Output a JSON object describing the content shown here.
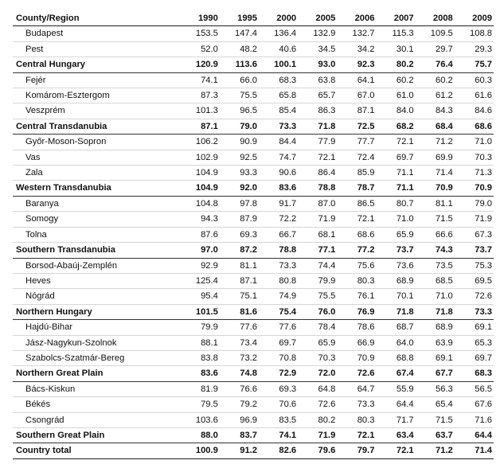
{
  "table": {
    "header": [
      "County/Region",
      "1990",
      "1995",
      "2000",
      "2005",
      "2006",
      "2007",
      "2008",
      "2009"
    ],
    "rows": [
      {
        "name": "Budapest",
        "type": "county",
        "values": [
          "153.5",
          "147.4",
          "136.4",
          "132.9",
          "132.7",
          "115.3",
          "109.5",
          "108.8"
        ],
        "bold": []
      },
      {
        "name": "Pest",
        "type": "county",
        "values": [
          "52.0",
          "48.2",
          "40.6",
          "34.5",
          "34.2",
          "30.1",
          "29.7",
          "29.3"
        ],
        "bold": []
      },
      {
        "name": "Central Hungary",
        "type": "region",
        "values": [
          "120.9",
          "113.6",
          "100.1",
          "93.0",
          "92.3",
          "80.2",
          "76.4",
          "75.7"
        ],
        "bold": [
          0,
          3,
          4,
          5,
          6,
          7
        ]
      },
      {
        "name": "Fejér",
        "type": "county",
        "values": [
          "74.1",
          "66.0",
          "68.3",
          "63.8",
          "64.1",
          "60.2",
          "60.2",
          "60.3"
        ],
        "bold": []
      },
      {
        "name": "Komárom-Esztergom",
        "type": "county",
        "values": [
          "87.3",
          "75.5",
          "65.8",
          "65.7",
          "67.0",
          "61.0",
          "61.2",
          "61.6"
        ],
        "bold": []
      },
      {
        "name": "Veszprém",
        "type": "county",
        "values": [
          "101.3",
          "96.5",
          "85.4",
          "86.3",
          "87.1",
          "84.0",
          "84.3",
          "84.6"
        ],
        "bold": []
      },
      {
        "name": "Central Transdanubia",
        "type": "region",
        "values": [
          "87.1",
          "79.0",
          "73.3",
          "71.8",
          "72.5",
          "68.2",
          "68.4",
          "68.6"
        ],
        "bold": [
          0,
          3,
          4,
          5,
          6,
          7
        ]
      },
      {
        "name": "Győr-Moson-Sopron",
        "type": "county",
        "values": [
          "106.2",
          "90.9",
          "84.4",
          "77.9",
          "77.7",
          "72.1",
          "71.2",
          "71.0"
        ],
        "bold": []
      },
      {
        "name": "Vas",
        "type": "county",
        "values": [
          "102.9",
          "92.5",
          "74.7",
          "72.1",
          "72.4",
          "69.7",
          "69.9",
          "70.3"
        ],
        "bold": []
      },
      {
        "name": "Zala",
        "type": "county",
        "values": [
          "104.9",
          "93.3",
          "90.6",
          "86.4",
          "85.9",
          "71.1",
          "71.4",
          "71.3"
        ],
        "bold": []
      },
      {
        "name": "Western Transdanubia",
        "type": "region",
        "values": [
          "104.9",
          "92.0",
          "83.6",
          "78.8",
          "78.7",
          "71.1",
          "70.9",
          "70.9"
        ],
        "bold": [
          0,
          3,
          4,
          5,
          6,
          7
        ]
      },
      {
        "name": "Baranya",
        "type": "county",
        "values": [
          "104.8",
          "97.8",
          "91.7",
          "87.0",
          "86.5",
          "80.7",
          "81.1",
          "79.0"
        ],
        "bold": []
      },
      {
        "name": "Somogy",
        "type": "county",
        "values": [
          "94.3",
          "87.9",
          "72.2",
          "71.9",
          "72.1",
          "71.0",
          "71.5",
          "71.9"
        ],
        "bold": []
      },
      {
        "name": "Tolna",
        "type": "county",
        "values": [
          "87.6",
          "69.3",
          "66.7",
          "68.1",
          "68.6",
          "65.9",
          "66.6",
          "67.3"
        ],
        "bold": []
      },
      {
        "name": "Southern Transdanubia",
        "type": "region",
        "values": [
          "97.0",
          "87.2",
          "78.8",
          "77.1",
          "77.2",
          "73.7",
          "74.3",
          "73.7"
        ],
        "bold": [
          0,
          3,
          4,
          5,
          6,
          7
        ]
      },
      {
        "name": "Borsod-Abaúj-Zemplén",
        "type": "county",
        "values": [
          "92.9",
          "81.1",
          "73.3",
          "74.4",
          "75.6",
          "73.6",
          "73.5",
          "75.3"
        ],
        "bold": []
      },
      {
        "name": "Heves",
        "type": "county",
        "values": [
          "125.4",
          "87.1",
          "80.8",
          "79.9",
          "80.3",
          "68.9",
          "68.5",
          "69.5"
        ],
        "bold": []
      },
      {
        "name": "Nógrád",
        "type": "county",
        "values": [
          "95.4",
          "75.1",
          "74.9",
          "75.5",
          "76.1",
          "70.1",
          "71.0",
          "72.6"
        ],
        "bold": []
      },
      {
        "name": "Northern Hungary",
        "type": "region",
        "values": [
          "101.5",
          "81.6",
          "75.4",
          "76.0",
          "76.9",
          "71.8",
          "71.8",
          "73.3"
        ],
        "bold": [
          0,
          3,
          4,
          5,
          6,
          7
        ]
      },
      {
        "name": "Hajdú-Bihar",
        "type": "county",
        "values": [
          "79.9",
          "77.6",
          "77.6",
          "78.4",
          "78.6",
          "68.7",
          "68.9",
          "69.1"
        ],
        "bold": []
      },
      {
        "name": "Jász-Nagykun-Szolnok",
        "type": "county",
        "values": [
          "88.1",
          "73.4",
          "69.7",
          "65.9",
          "66.9",
          "64.0",
          "63.9",
          "65.3"
        ],
        "bold": []
      },
      {
        "name": "Szabolcs-Szatmár-Bereg",
        "type": "county",
        "values": [
          "83.8",
          "73.2",
          "70.8",
          "70.3",
          "70.9",
          "68.8",
          "69.1",
          "69.7"
        ],
        "bold": []
      },
      {
        "name": "Northern Great Plain",
        "type": "region",
        "values": [
          "83.6",
          "74.8",
          "72.9",
          "72.0",
          "72.6",
          "67.4",
          "67.7",
          "68.3"
        ],
        "bold": [
          0,
          3,
          4,
          5,
          6,
          7
        ]
      },
      {
        "name": "Bács-Kiskun",
        "type": "county",
        "values": [
          "81.9",
          "76.6",
          "69.3",
          "64.8",
          "64.7",
          "55.9",
          "56.3",
          "56.5"
        ],
        "bold": []
      },
      {
        "name": "Békés",
        "type": "county",
        "values": [
          "79.5",
          "79.2",
          "70.6",
          "72.6",
          "73.3",
          "64.4",
          "65.4",
          "67.6"
        ],
        "bold": []
      },
      {
        "name": "Csongrád",
        "type": "county",
        "values": [
          "103.6",
          "96.9",
          "83.5",
          "80.2",
          "80.3",
          "71.7",
          "71.5",
          "71.6"
        ],
        "bold": []
      },
      {
        "name": "Southern Great Plain",
        "type": "region",
        "values": [
          "88.0",
          "83.7",
          "74.1",
          "71.9",
          "72.1",
          "63.4",
          "63.7",
          "64.4"
        ],
        "bold": [
          0,
          3,
          4,
          5,
          6,
          7
        ]
      },
      {
        "name": "Country total",
        "type": "total",
        "values": [
          "100.9",
          "91.2",
          "82.6",
          "79.6",
          "79.7",
          "72.1",
          "71.2",
          "71.4"
        ],
        "bold": [
          0,
          1,
          2,
          3,
          4,
          5,
          6,
          7
        ]
      }
    ]
  }
}
